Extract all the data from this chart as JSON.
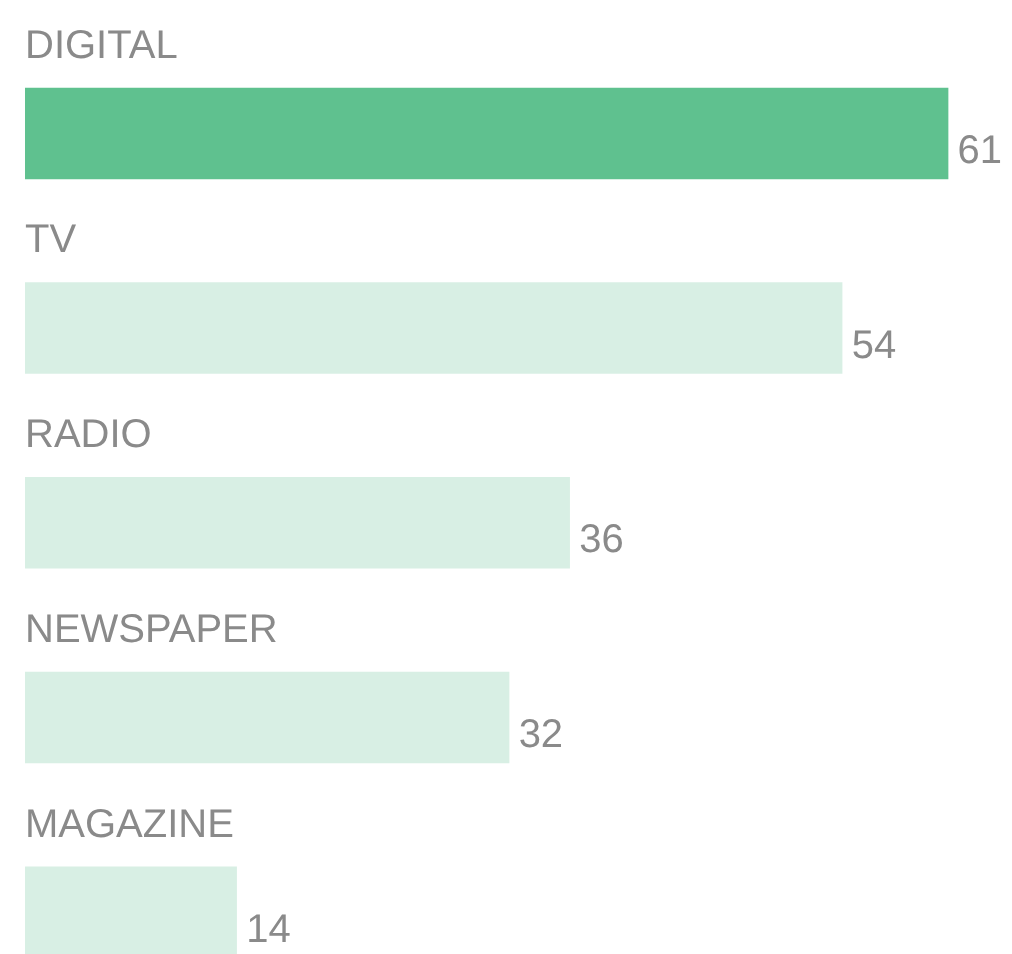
{
  "chart_data": {
    "type": "bar",
    "orientation": "horizontal",
    "categories": [
      "DIGITAL",
      "TV",
      "RADIO",
      "NEWSPAPER",
      "MAGAZINE"
    ],
    "values": [
      61,
      54,
      36,
      32,
      14
    ],
    "colors": [
      "#5fc18f",
      "#d8efe4",
      "#d8efe4",
      "#d8efe4",
      "#d8efe4"
    ],
    "data_labels": true,
    "grid": false,
    "tick_labels": false
  }
}
